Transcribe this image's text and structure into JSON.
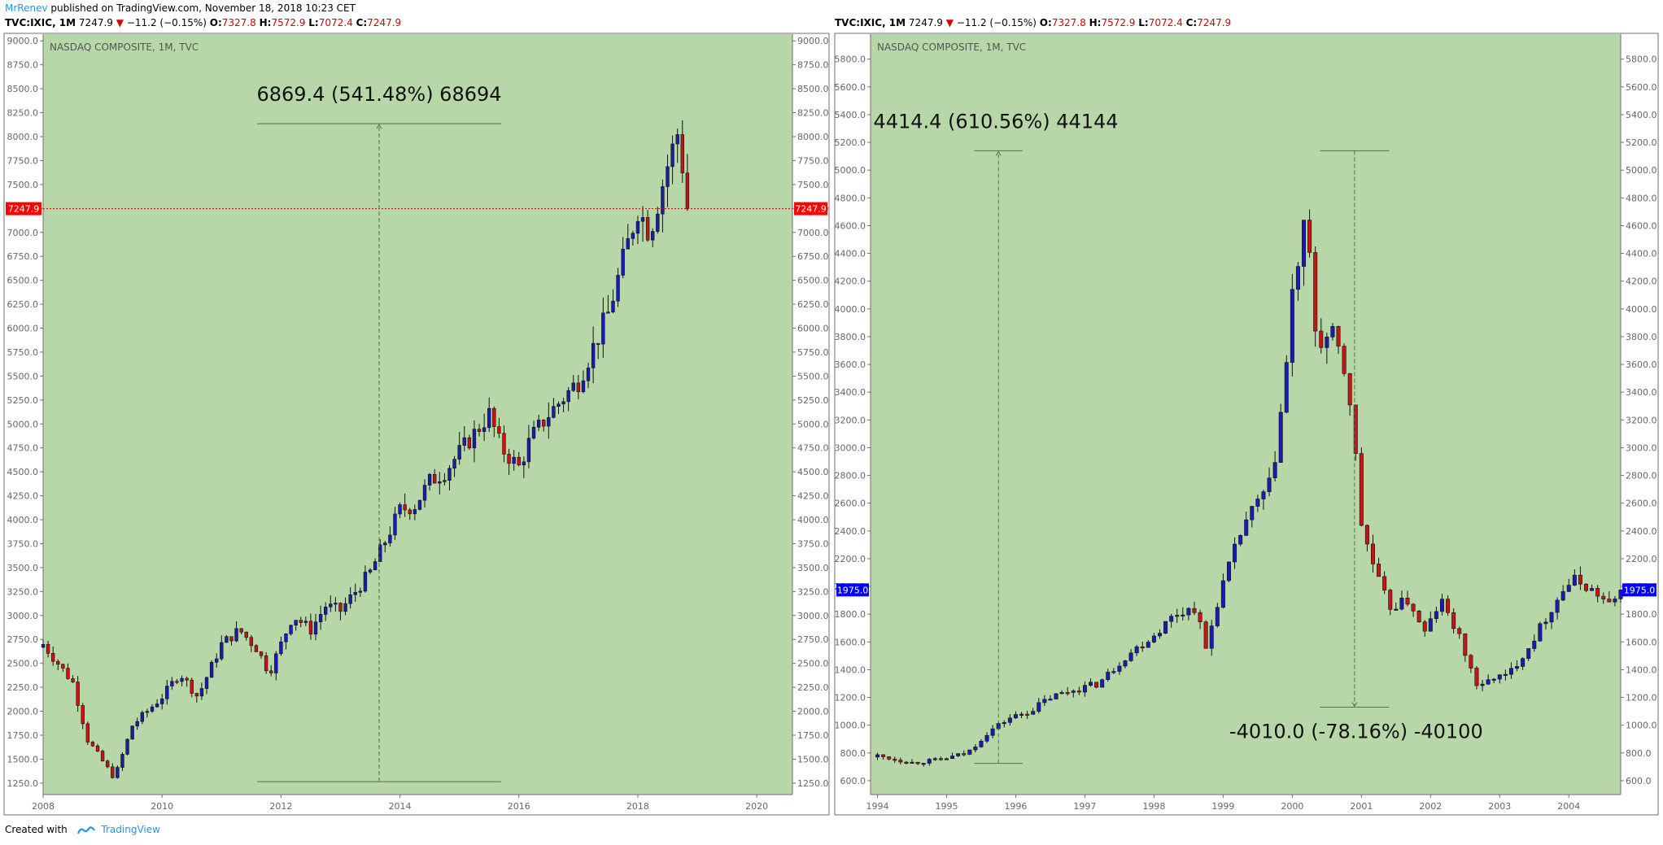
{
  "header": {
    "author": "MrRenev",
    "published": " published on TradingView.com, November 18, 2018 10:23 CET"
  },
  "legend": {
    "symbol": "TVC:IXIC, 1M",
    "close": "7247.9",
    "arrow": "▼",
    "change": "−11.2 (−0.15%)",
    "o_label": "O:",
    "o_value": "7327.8",
    "h_label": "H:",
    "h_value": "7572.9",
    "l_label": "L:",
    "l_value": "7072.4",
    "c_label": "C:",
    "c_value": "7247.9"
  },
  "footer": {
    "created_with": "Created with",
    "brand": "TradingView"
  },
  "colors": {
    "background": "#b7d7a8",
    "up": "#1a1ab4",
    "down": "#c81414",
    "price_line": "#d50000"
  },
  "chart_data": [
    {
      "type": "candlestick",
      "title": "NASDAQ COMPOSITE, 1M, TVC",
      "x_ticks": [
        "2008",
        "2010",
        "2012",
        "2014",
        "2016",
        "2018",
        "2020"
      ],
      "xlim": [
        2008.0,
        2020.6
      ],
      "ylim": [
        1130,
        9070
      ],
      "y_ticks": [
        "1250.0",
        "1500.0",
        "1750.0",
        "2000.0",
        "2250.0",
        "2500.0",
        "2750.0",
        "3000.0",
        "3250.0",
        "3500.0",
        "3750.0",
        "4000.0",
        "4250.0",
        "4500.0",
        "4750.0",
        "5000.0",
        "5250.0",
        "5500.0",
        "5750.0",
        "6000.0",
        "6250.0",
        "6500.0",
        "6750.0",
        "7000.0",
        "7250.0",
        "7500.0",
        "7750.0",
        "8000.0",
        "8250.0",
        "8500.0",
        "8750.0",
        "9000.0"
      ],
      "last_price": "7247.9",
      "measure": {
        "label": "6869.4 (541.48%) 68694",
        "x_from": 2011.6,
        "x_to": 2015.7,
        "low": 1265,
        "high": 8135
      },
      "anchors": [
        [
          2008.0,
          2700
        ],
        [
          2008.5,
          2300
        ],
        [
          2008.75,
          1700
        ],
        [
          2009.2,
          1300
        ],
        [
          2009.5,
          1850
        ],
        [
          2010.0,
          2150
        ],
        [
          2010.3,
          2400
        ],
        [
          2010.6,
          2150
        ],
        [
          2011.0,
          2700
        ],
        [
          2011.3,
          2850
        ],
        [
          2011.6,
          2650
        ],
        [
          2011.8,
          2400
        ],
        [
          2012.2,
          3000
        ],
        [
          2012.5,
          2850
        ],
        [
          2012.75,
          3100
        ],
        [
          2013.0,
          3050
        ],
        [
          2013.5,
          3450
        ],
        [
          2014.0,
          4100
        ],
        [
          2014.25,
          4150
        ],
        [
          2014.5,
          4400
        ],
        [
          2014.75,
          4500
        ],
        [
          2015.0,
          4700
        ],
        [
          2015.5,
          5100
        ],
        [
          2015.7,
          4750
        ],
        [
          2016.0,
          4550
        ],
        [
          2016.2,
          4850
        ],
        [
          2016.5,
          5100
        ],
        [
          2017.0,
          5450
        ],
        [
          2017.5,
          6150
        ],
        [
          2018.0,
          7250
        ],
        [
          2018.2,
          7000
        ],
        [
          2018.5,
          7700
        ],
        [
          2018.7,
          8100
        ],
        [
          2018.8,
          7300
        ],
        [
          2018.87,
          7248
        ]
      ]
    },
    {
      "type": "candlestick",
      "title": "NASDAQ COMPOSITE, 1M, TVC",
      "x_ticks": [
        "1994",
        "1995",
        "1996",
        "1997",
        "1998",
        "1999",
        "2000",
        "2001",
        "2002",
        "2003",
        "2004"
      ],
      "xlim": [
        1993.9,
        2004.75
      ],
      "ylim": [
        500,
        5980
      ],
      "y_ticks": [
        "600.0",
        "800.0",
        "1000.0",
        "1200.0",
        "1400.0",
        "1600.0",
        "1800.0",
        "2000.0",
        "2200.0",
        "2400.0",
        "2600.0",
        "2800.0",
        "3000.0",
        "3200.0",
        "3400.0",
        "3600.0",
        "3800.0",
        "4000.0",
        "4200.0",
        "4400.0",
        "4600.0",
        "4800.0",
        "5000.0",
        "5200.0",
        "5400.0",
        "5600.0",
        "5800.0"
      ],
      "last_price": "1975.0",
      "measure_up": {
        "label": "4414.4 (610.56%) 44144",
        "x_from": 1995.4,
        "x_to": 1996.1,
        "low": 725,
        "high": 5140
      },
      "measure_down": {
        "label": "-4010.0 (-78.16%) -40100",
        "x_from": 2000.4,
        "x_to": 2001.4,
        "high": 5140,
        "low": 1130
      },
      "anchors": [
        [
          1994.0,
          780
        ],
        [
          1994.5,
          730
        ],
        [
          1994.9,
          750
        ],
        [
          1995.3,
          800
        ],
        [
          1995.6,
          950
        ],
        [
          1995.9,
          1050
        ],
        [
          1996.2,
          1100
        ],
        [
          1996.5,
          1200
        ],
        [
          1996.8,
          1250
        ],
        [
          1997.2,
          1300
        ],
        [
          1997.6,
          1500
        ],
        [
          1998.0,
          1650
        ],
        [
          1998.3,
          1800
        ],
        [
          1998.6,
          1850
        ],
        [
          1998.75,
          1550
        ],
        [
          1998.95,
          1950
        ],
        [
          1999.3,
          2450
        ],
        [
          1999.7,
          2750
        ],
        [
          1999.9,
          3500
        ],
        [
          2000.0,
          4100
        ],
        [
          2000.2,
          4650
        ],
        [
          2000.35,
          3750
        ],
        [
          2000.6,
          3800
        ],
        [
          2000.75,
          3550
        ],
        [
          2000.85,
          3300
        ],
        [
          2001.0,
          2450
        ],
        [
          2001.2,
          2100
        ],
        [
          2001.4,
          1850
        ],
        [
          2001.7,
          1900
        ],
        [
          2001.9,
          1650
        ],
        [
          2002.15,
          1900
        ],
        [
          2002.4,
          1650
        ],
        [
          2002.7,
          1250
        ],
        [
          2002.9,
          1350
        ],
        [
          2003.1,
          1350
        ],
        [
          2003.4,
          1550
        ],
        [
          2003.7,
          1800
        ],
        [
          2003.95,
          2000
        ],
        [
          2004.1,
          2050
        ],
        [
          2004.4,
          1950
        ],
        [
          2004.6,
          1850
        ],
        [
          2004.75,
          1975
        ]
      ]
    }
  ]
}
